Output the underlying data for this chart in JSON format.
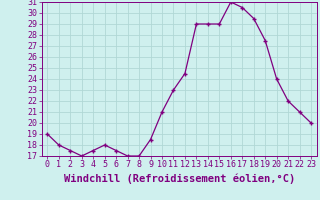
{
  "x": [
    0,
    1,
    2,
    3,
    4,
    5,
    6,
    7,
    8,
    9,
    10,
    11,
    12,
    13,
    14,
    15,
    16,
    17,
    18,
    19,
    20,
    21,
    22,
    23
  ],
  "y": [
    19,
    18,
    17.5,
    17,
    17.5,
    18,
    17.5,
    17,
    17,
    18.5,
    21,
    23,
    24.5,
    29,
    29,
    29,
    31,
    30.5,
    29.5,
    27.5,
    24,
    22,
    21,
    20
  ],
  "line_color": "#800080",
  "marker": "+",
  "marker_color": "#800080",
  "bg_color": "#cff0ee",
  "grid_color": "#b0d8d5",
  "xlabel": "Windchill (Refroidissement éolien,°C)",
  "ylim": [
    17,
    31
  ],
  "xlim": [
    -0.5,
    23.5
  ],
  "yticks": [
    17,
    18,
    19,
    20,
    21,
    22,
    23,
    24,
    25,
    26,
    27,
    28,
    29,
    30,
    31
  ],
  "xticks": [
    0,
    1,
    2,
    3,
    4,
    5,
    6,
    7,
    8,
    9,
    10,
    11,
    12,
    13,
    14,
    15,
    16,
    17,
    18,
    19,
    20,
    21,
    22,
    23
  ],
  "tick_color": "#800080",
  "label_color": "#800080",
  "spine_color": "#800080",
  "font_size_xlabel": 7.5,
  "font_size_ticks": 6.0
}
